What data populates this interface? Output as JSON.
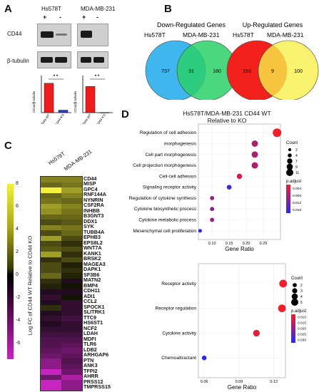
{
  "panels": {
    "a": "A",
    "b": "B",
    "c": "C",
    "d": "D"
  },
  "panel_a": {
    "cell_lines": [
      "Hs578T",
      "MDA-MB-231"
    ],
    "rows": [
      "CD44",
      "β-tubulin"
    ],
    "lane_signs": [
      "+",
      "-",
      "+",
      "-"
    ],
    "bar_charts": [
      {
        "ylabel": "CD44/β-tubulin",
        "categories": [
          "CD44 WT",
          "CD44 KO"
        ],
        "values": [
          0.95,
          0.08
        ],
        "sig": "* *",
        "ylim": [
          0,
          1.2
        ]
      },
      {
        "ylabel": "CD44/β-tubulin",
        "categories": [
          "CD44 WT",
          "CD44 KO"
        ],
        "values": [
          0.85,
          0.0
        ],
        "sig": "* *",
        "ylim": [
          0,
          1.2
        ]
      }
    ]
  },
  "panel_b": {
    "down": {
      "title": "Down-Regulated Genes",
      "left_label": "Hs578T",
      "right_label": "MDA-MB-231",
      "left_only": "737",
      "overlap": "31",
      "right_only": "180",
      "left_color": "#3fb6ee",
      "right_color": "#2bd06a"
    },
    "up": {
      "title": "Up-Regulated Genes",
      "left_label": "Hs578T",
      "right_label": "MDA-MB-231",
      "left_only": "153",
      "overlap": "9",
      "right_only": "100",
      "left_color": "#f2211c",
      "right_color": "#f7ef4a"
    }
  },
  "panel_c": {
    "column_labels": [
      "Hs578T",
      "MDA-MB-231"
    ],
    "colorbar_label": "Log FC of CD44 WT Relative to CD44 KO",
    "colorbar_ticks": [
      "8",
      "6",
      "4",
      "2",
      "0",
      "-2",
      "-4",
      "-6"
    ],
    "genes": [
      "CD44",
      "MISP",
      "GPC4",
      "RNF144A",
      "NYNRIN",
      "CSF2RA",
      "INHBB",
      "B3GNT3",
      "DDX1",
      "SYK",
      "TUBB4A",
      "EPHB3",
      "EPS8L2",
      "WNT7A",
      "KANK1",
      "BRSK2",
      "MAGEA3",
      "DAPK1",
      "SF3B6",
      "MATN2",
      "BMP4",
      "CDH11",
      "ADI1",
      "CCL2",
      "SPOCK1",
      "SLITRK1",
      "TTC9",
      "HS6ST1",
      "NCF2",
      "LDAH",
      "MDFI",
      "TLR6",
      "LDB2",
      "ARHGAP6",
      "PTN",
      "ANK3",
      "TFPI2",
      "AHRR",
      "PRSS12",
      "TMPRSS15"
    ],
    "values": [
      [
        4,
        4
      ],
      [
        3,
        3.5
      ],
      [
        8,
        5
      ],
      [
        3,
        4
      ],
      [
        3.5,
        3
      ],
      [
        5,
        4
      ],
      [
        4.5,
        3.5
      ],
      [
        3,
        3
      ],
      [
        2,
        2.5
      ],
      [
        4,
        3.5
      ],
      [
        2,
        3
      ],
      [
        5,
        2
      ],
      [
        2,
        1
      ],
      [
        2.5,
        2
      ],
      [
        5,
        1
      ],
      [
        1,
        2
      ],
      [
        2,
        0.5
      ],
      [
        2,
        1
      ],
      [
        3,
        0.5
      ],
      [
        1,
        -0.5
      ],
      [
        0.5,
        0
      ],
      [
        -0.5,
        -0.5
      ],
      [
        -1,
        0
      ],
      [
        -0.5,
        -1
      ],
      [
        1,
        -1
      ],
      [
        -0.5,
        -1
      ],
      [
        -1,
        -1.5
      ],
      [
        -0.5,
        -1
      ],
      [
        -1,
        -1
      ],
      [
        -1.5,
        -1.5
      ],
      [
        -2,
        -2
      ],
      [
        -2,
        -2.5
      ],
      [
        -2.5,
        -3
      ],
      [
        -3,
        -2.5
      ],
      [
        -4,
        -2
      ],
      [
        -4,
        -2.5
      ],
      [
        -6,
        -3
      ],
      [
        -3,
        -5
      ],
      [
        -6,
        -4
      ],
      [
        -6,
        -4
      ]
    ]
  },
  "panel_d": {
    "title_line1": "Hs578T/MDA-MB-231 CD44 WT",
    "title_line2": "Relative to KO",
    "top": {
      "xlabel": "Gene Ratio",
      "xticks": [
        "0.10",
        "0.15",
        "0.20",
        "0.25"
      ],
      "xlim": [
        0.06,
        0.3
      ],
      "categories": [
        "Regulation of cell adhesion",
        "morphogenesis",
        "Cell part morphogenesis",
        "Cell projection morphogenesis",
        "Cell-cell adhesion",
        "Signaling receptor activity",
        "Regulation of cytokine synthesis",
        "Cytokine biosynthetic process",
        "Cytokine metabolic process",
        "Mesenchymal cell proliferation"
      ],
      "gene_ratio": [
        0.29,
        0.225,
        0.225,
        0.225,
        0.18,
        0.15,
        0.1,
        0.1,
        0.1,
        0.065
      ],
      "count": [
        11,
        7,
        7,
        7,
        5,
        4,
        3,
        3,
        3,
        2
      ],
      "p_adjust": [
        0.0005,
        0.006,
        0.006,
        0.006,
        0.003,
        0.014,
        0.008,
        0.008,
        0.008,
        0.016
      ],
      "count_legend_title": "Count",
      "count_legend": [
        "2",
        "4",
        "7",
        "9",
        "11"
      ],
      "padj_legend_title": "p.adjust",
      "padj_legend": [
        "0.004",
        "0.008",
        "0.012",
        "0.016"
      ]
    },
    "bottom": {
      "xlabel": "Gene Ratio",
      "xticks": [
        "0.06",
        "0.09",
        "0.12"
      ],
      "xlim": [
        0.055,
        0.13
      ],
      "categories": [
        "Receptor activity",
        "Receptor regulation",
        "Cytokine activity",
        "Chemoattractant"
      ],
      "gene_ratio": [
        0.128,
        0.127,
        0.105,
        0.06
      ],
      "count": [
        5,
        5,
        4,
        2
      ],
      "p_adjust": [
        0.003,
        0.003,
        0.005,
        0.03
      ],
      "count_legend_title": "Count",
      "count_legend": [
        "2",
        "3",
        "4",
        "5"
      ],
      "padj_legend_title": "p.adjust",
      "padj_legend": [
        "0.010",
        "0.015",
        "0.020",
        "0.025",
        "0.030"
      ]
    }
  }
}
